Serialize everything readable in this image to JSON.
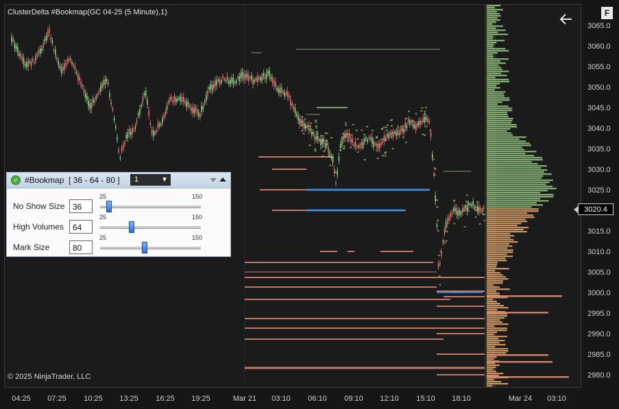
{
  "chart": {
    "title": "ClusterDelta #Bookmap(GC 04-25 (5 Minute),1)",
    "copyright": "© 2025 NinjaTrader, LLC",
    "current_price": "3020.4",
    "y_axis_labels": [
      "3065.0",
      "3060.0",
      "3055.0",
      "3050.0",
      "3045.0",
      "3040.0",
      "3035.0",
      "3030.0",
      "3025.0",
      "3015.0",
      "3010.0",
      "3005.0",
      "3000.0",
      "2995.0",
      "2990.0",
      "2985.0",
      "2980.0"
    ],
    "x_axis_labels": [
      "04:25",
      "07:25",
      "10:25",
      "13:25",
      "16:25",
      "19:25",
      "Mar 21",
      "03:10",
      "06:10",
      "09:10",
      "12:10",
      "15:10",
      "18:10",
      "Mar 24",
      "03:10"
    ],
    "f_button": "F",
    "colors": {
      "up": "#8fd18a",
      "down": "#e0746f",
      "bid": "#e08a74",
      "ask": "#8fb87f",
      "large": "#2f8ff0",
      "profile_high": "#90c27f",
      "profile_low": "#e0a56e"
    }
  },
  "panel": {
    "title": "#Bookmap  [ 36 - 64 - 80 ]",
    "select_value": "1",
    "rows": [
      {
        "label": "No Show Size",
        "value": "36",
        "min": "25",
        "max": "150",
        "level": 36
      },
      {
        "label": "High Volumes",
        "value": "64",
        "min": "25",
        "max": "150",
        "level": 64
      },
      {
        "label": "Mark Size",
        "value": "80",
        "min": "25",
        "max": "150",
        "level": 80
      }
    ]
  }
}
